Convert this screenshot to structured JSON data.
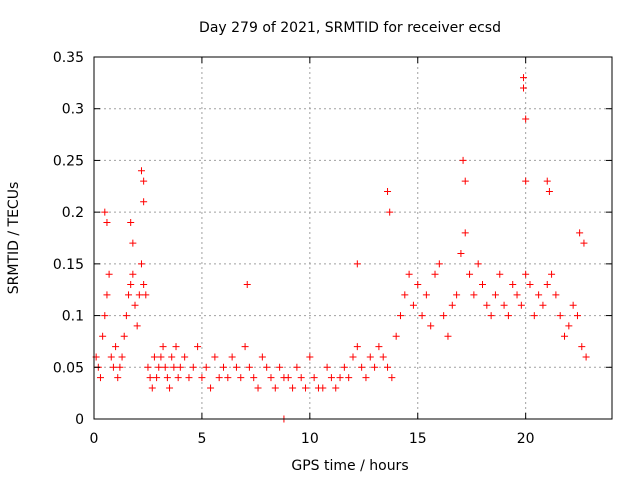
{
  "chart_data": {
    "type": "scatter",
    "title": "Day 279 of 2021, SRMTID for receiver ecsd",
    "xlabel": "GPS time / hours",
    "ylabel": "SRMTID / TECUs",
    "xlim": [
      0,
      24
    ],
    "ylim": [
      0,
      0.35
    ],
    "xticks": [
      0,
      5,
      10,
      15,
      20
    ],
    "xtick_labels": [
      "0",
      "5",
      "10",
      "15",
      "20"
    ],
    "yticks": [
      0,
      0.05,
      0.1,
      0.15,
      0.2,
      0.25,
      0.3,
      0.35
    ],
    "ytick_labels": [
      "0",
      "0.05",
      "0.1",
      "0.15",
      "0.2",
      "0.25",
      "0.3",
      "0.35"
    ],
    "grid": true,
    "marker": "+",
    "color": "#ff0000",
    "series": [
      {
        "name": "SRMTID",
        "x": [
          0.1,
          0.2,
          0.3,
          0.4,
          0.5,
          0.6,
          0.7,
          0.8,
          0.9,
          1.0,
          1.1,
          1.2,
          1.3,
          1.4,
          1.5,
          1.6,
          1.7,
          1.8,
          1.9,
          2.0,
          2.1,
          2.2,
          2.3,
          2.4,
          2.5,
          2.6,
          2.7,
          2.8,
          2.9,
          3.0,
          3.1,
          3.2,
          3.3,
          3.4,
          3.5,
          3.6,
          3.7,
          3.8,
          3.9,
          4.0,
          4.2,
          4.4,
          4.6,
          4.8,
          5.0,
          5.2,
          5.4,
          5.6,
          5.8,
          6.0,
          6.2,
          6.4,
          6.6,
          6.8,
          7.0,
          7.2,
          7.4,
          7.6,
          7.8,
          8.0,
          8.2,
          8.4,
          8.6,
          8.8,
          9.0,
          9.2,
          9.4,
          9.6,
          9.8,
          10.0,
          10.2,
          10.4,
          10.6,
          10.8,
          11.0,
          11.2,
          11.4,
          11.6,
          11.8,
          12.0,
          12.2,
          12.4,
          12.6,
          12.8,
          13.0,
          13.2,
          13.4,
          13.6,
          13.8,
          14.0,
          14.2,
          14.4,
          14.6,
          14.8,
          15.0,
          15.2,
          15.4,
          15.6,
          15.8,
          16.0,
          16.2,
          16.4,
          16.6,
          16.8,
          17.0,
          17.2,
          17.4,
          17.6,
          17.8,
          18.0,
          18.2,
          18.4,
          18.6,
          18.8,
          19.0,
          19.2,
          19.4,
          19.6,
          19.8,
          20.0,
          20.2,
          20.4,
          20.6,
          20.8,
          21.0,
          21.2,
          21.4,
          21.6,
          21.8,
          22.0,
          22.2,
          22.4,
          22.6,
          22.8,
          0.5,
          0.6,
          1.7,
          1.8,
          2.2,
          2.3,
          2.3,
          7.1,
          8.8,
          12.2,
          13.6,
          13.7,
          17.1,
          17.2,
          19.9,
          19.9,
          20.0,
          20.0,
          21.0,
          21.1,
          22.5,
          22.7
        ],
        "y": [
          0.06,
          0.05,
          0.04,
          0.08,
          0.1,
          0.12,
          0.14,
          0.06,
          0.05,
          0.07,
          0.04,
          0.05,
          0.06,
          0.08,
          0.1,
          0.12,
          0.13,
          0.14,
          0.11,
          0.09,
          0.12,
          0.15,
          0.13,
          0.12,
          0.05,
          0.04,
          0.03,
          0.06,
          0.04,
          0.05,
          0.06,
          0.07,
          0.05,
          0.04,
          0.03,
          0.06,
          0.05,
          0.07,
          0.04,
          0.05,
          0.06,
          0.04,
          0.05,
          0.07,
          0.04,
          0.05,
          0.03,
          0.06,
          0.04,
          0.05,
          0.04,
          0.06,
          0.05,
          0.04,
          0.07,
          0.05,
          0.04,
          0.03,
          0.06,
          0.05,
          0.04,
          0.03,
          0.05,
          0.04,
          0.04,
          0.03,
          0.05,
          0.04,
          0.03,
          0.06,
          0.04,
          0.03,
          0.03,
          0.05,
          0.04,
          0.03,
          0.04,
          0.05,
          0.04,
          0.06,
          0.07,
          0.05,
          0.04,
          0.06,
          0.05,
          0.07,
          0.06,
          0.05,
          0.04,
          0.08,
          0.1,
          0.12,
          0.14,
          0.11,
          0.13,
          0.1,
          0.12,
          0.09,
          0.14,
          0.15,
          0.1,
          0.08,
          0.11,
          0.12,
          0.16,
          0.18,
          0.14,
          0.12,
          0.15,
          0.13,
          0.11,
          0.1,
          0.12,
          0.14,
          0.11,
          0.1,
          0.13,
          0.12,
          0.11,
          0.14,
          0.13,
          0.1,
          0.12,
          0.11,
          0.13,
          0.14,
          0.12,
          0.1,
          0.08,
          0.09,
          0.11,
          0.1,
          0.07,
          0.06,
          0.2,
          0.19,
          0.19,
          0.17,
          0.24,
          0.23,
          0.21,
          0.13,
          0.0,
          0.15,
          0.22,
          0.2,
          0.25,
          0.23,
          0.33,
          0.32,
          0.29,
          0.23,
          0.23,
          0.22,
          0.18,
          0.17
        ]
      }
    ]
  }
}
